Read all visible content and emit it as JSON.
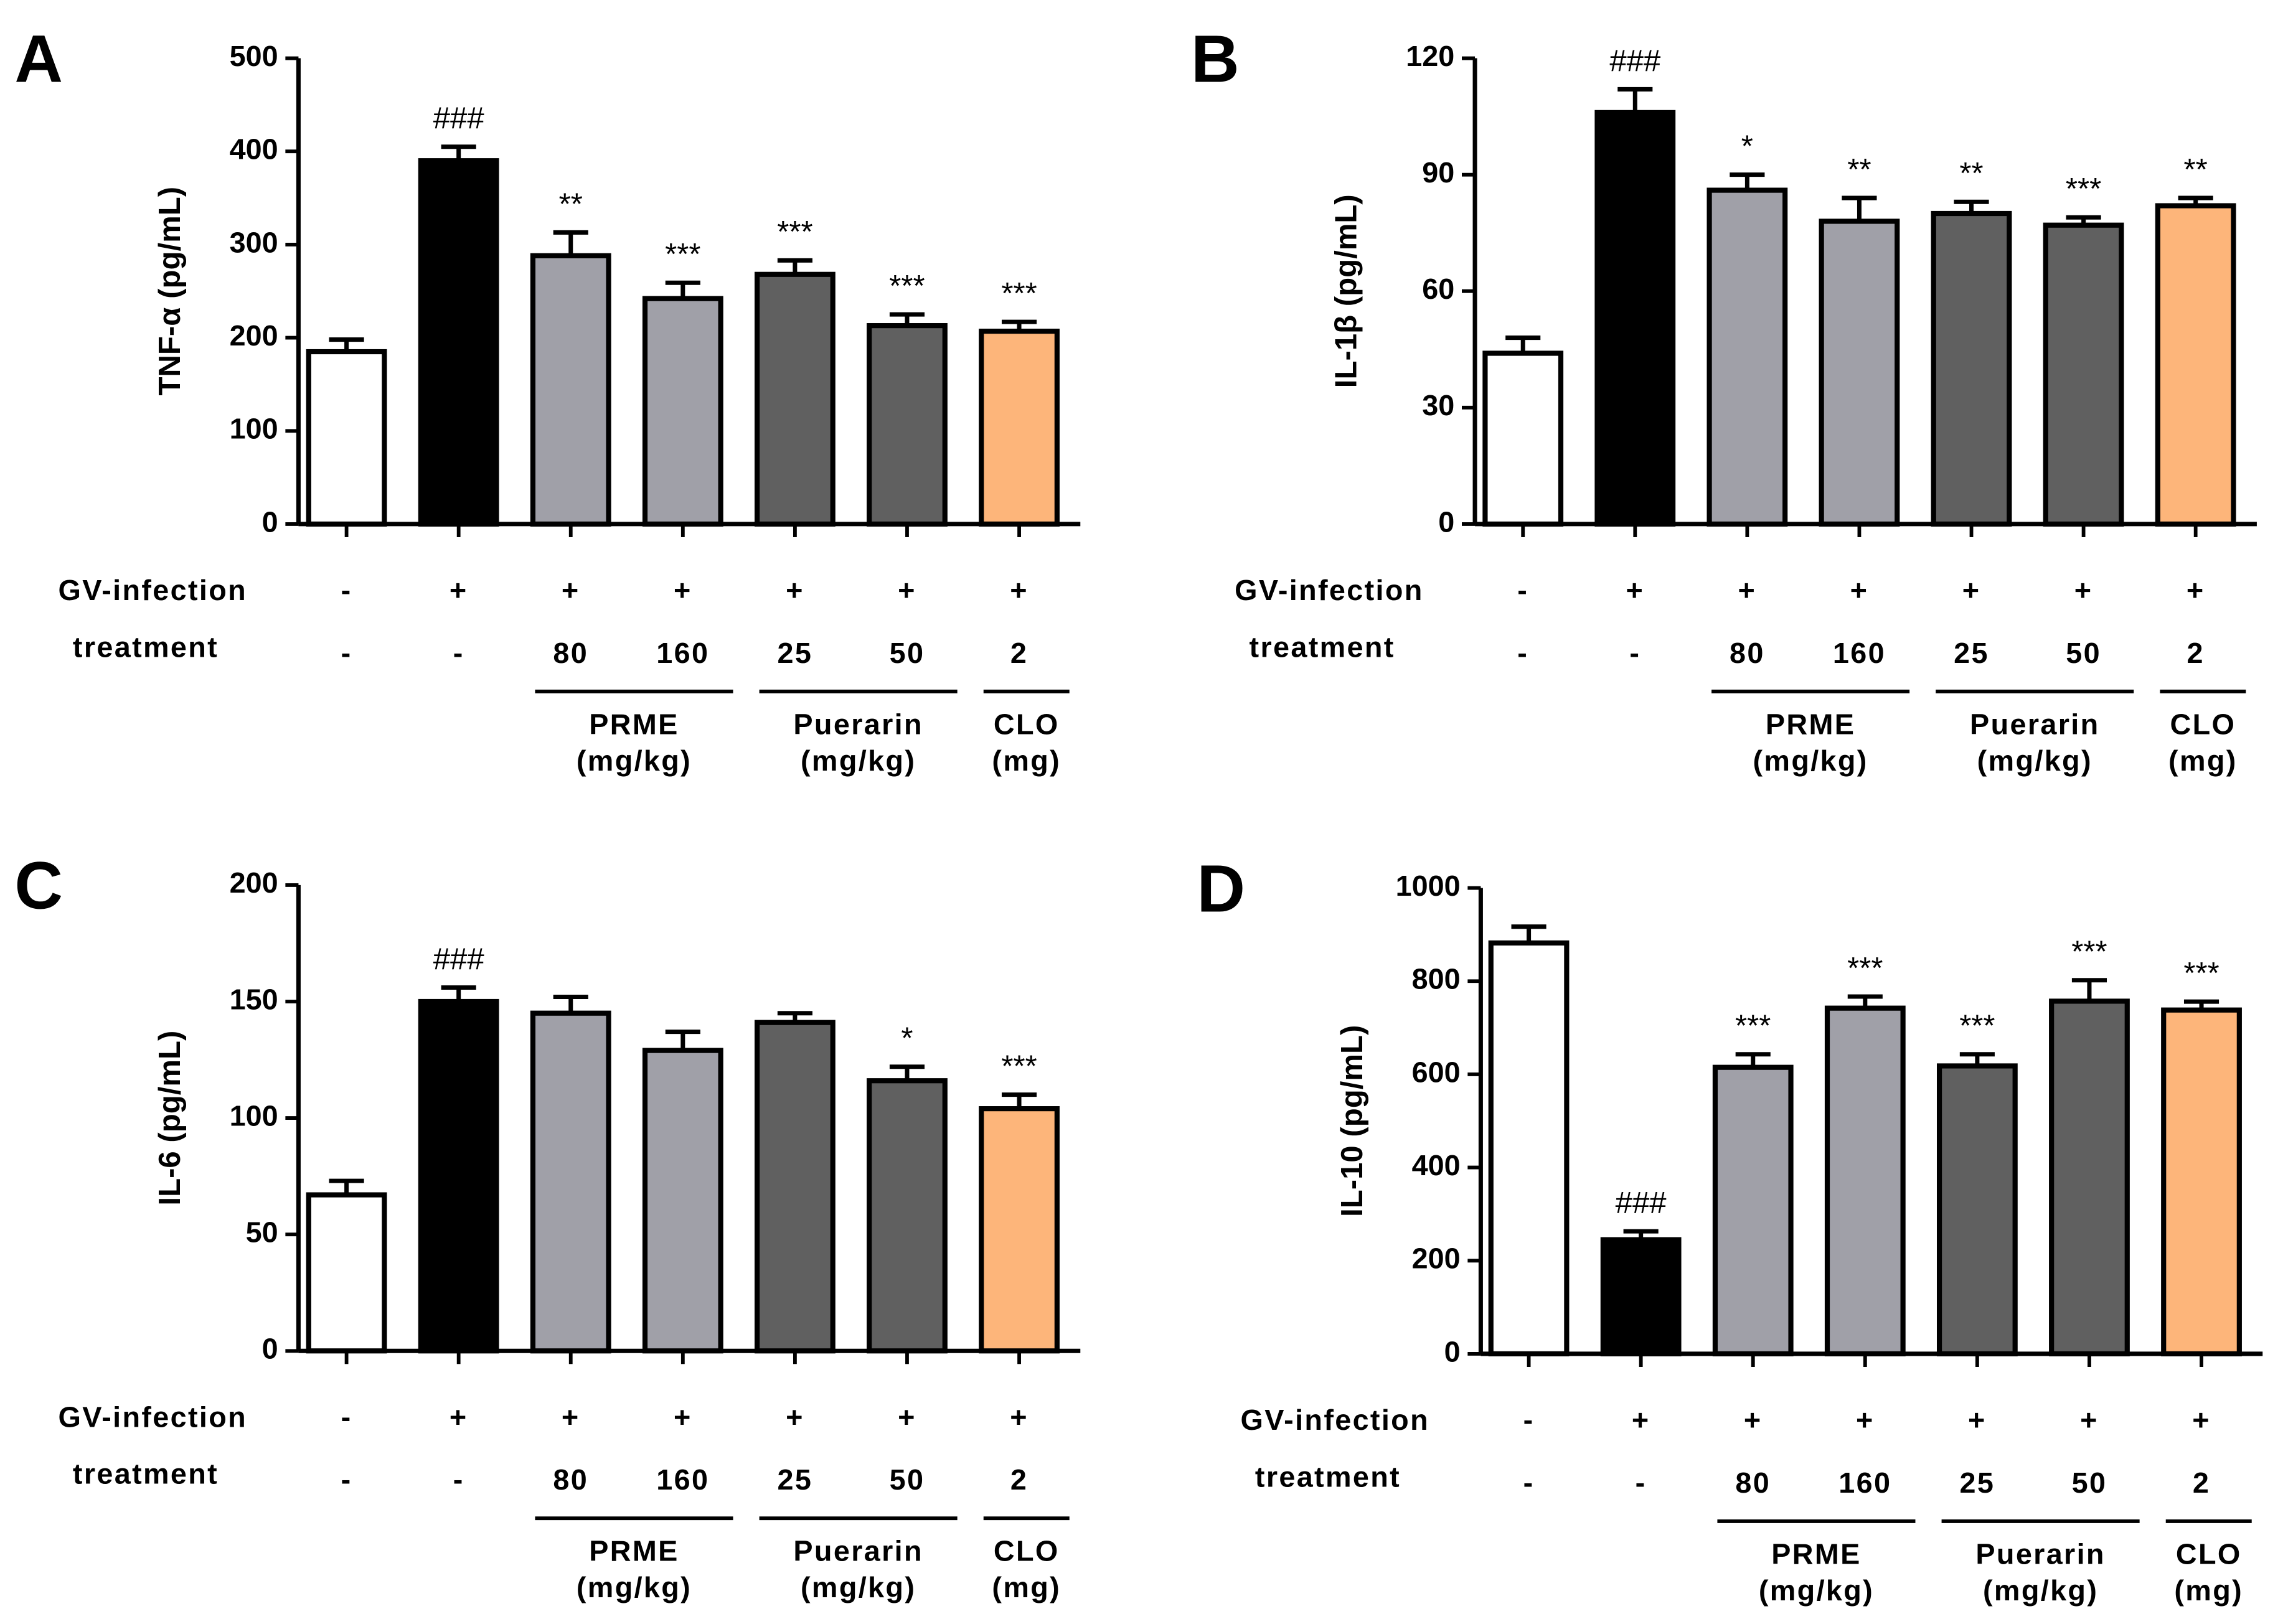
{
  "chart_data": [
    {
      "type": "bar",
      "panel": "A",
      "ylabel": "TNF-α  (pg/mL)",
      "ylim": [
        0,
        500
      ],
      "yticks": [
        0,
        100,
        200,
        300,
        400,
        500
      ],
      "series": [
        {
          "values": [
            185,
            390,
            288,
            242,
            268,
            213,
            207
          ],
          "errors": [
            13,
            15,
            25,
            17,
            15,
            12,
            10
          ],
          "colors": [
            "#ffffff",
            "#000000",
            "#a0a0a8",
            "#a0a0a8",
            "#606060",
            "#606060",
            "#fdb57a"
          ]
        }
      ],
      "annotations": [
        null,
        "###",
        "**",
        "***",
        "***",
        "***",
        "***"
      ],
      "rows": [
        {
          "label": "GV-infection",
          "values": [
            "-",
            "+",
            "+",
            "+",
            "+",
            "+",
            "+"
          ]
        },
        {
          "label": "treatment",
          "values": [
            "-",
            "-",
            "80",
            "160",
            "25",
            "50",
            "2"
          ]
        }
      ],
      "groups": [
        {
          "lines": [
            "PRME",
            "(mg/kg)"
          ],
          "bars": [
            2,
            3
          ]
        },
        {
          "lines": [
            "Puerarin",
            "(mg/kg)"
          ],
          "bars": [
            4,
            5
          ]
        },
        {
          "lines": [
            "CLO",
            "(mg)"
          ],
          "bars": [
            6,
            6
          ]
        }
      ]
    },
    {
      "type": "bar",
      "panel": "B",
      "ylabel": "IL-1β  (pg/mL)",
      "ylim": [
        0,
        120
      ],
      "yticks": [
        0,
        30,
        60,
        90,
        120
      ],
      "series": [
        {
          "values": [
            44,
            106,
            86,
            78,
            80,
            77,
            82
          ],
          "errors": [
            4,
            6,
            4,
            6,
            3,
            2,
            2
          ],
          "colors": [
            "#ffffff",
            "#000000",
            "#a0a0a8",
            "#a0a0a8",
            "#606060",
            "#606060",
            "#fdb57a"
          ]
        }
      ],
      "annotations": [
        null,
        "###",
        "*",
        "**",
        "**",
        "***",
        "**"
      ],
      "rows": [
        {
          "label": "GV-infection",
          "values": [
            "-",
            "+",
            "+",
            "+",
            "+",
            "+",
            "+"
          ]
        },
        {
          "label": "treatment",
          "values": [
            "-",
            "-",
            "80",
            "160",
            "25",
            "50",
            "2"
          ]
        }
      ],
      "groups": [
        {
          "lines": [
            "PRME",
            "(mg/kg)"
          ],
          "bars": [
            2,
            3
          ]
        },
        {
          "lines": [
            "Puerarin",
            "(mg/kg)"
          ],
          "bars": [
            4,
            5
          ]
        },
        {
          "lines": [
            "CLO",
            "(mg)"
          ],
          "bars": [
            6,
            6
          ]
        }
      ]
    },
    {
      "type": "bar",
      "panel": "C",
      "ylabel": "IL-6 (pg/mL)",
      "ylim": [
        0,
        200
      ],
      "yticks": [
        0,
        50,
        100,
        150,
        200
      ],
      "series": [
        {
          "values": [
            67,
            150,
            145,
            129,
            141,
            116,
            104
          ],
          "errors": [
            6,
            6,
            7,
            8,
            4,
            6,
            6
          ],
          "colors": [
            "#ffffff",
            "#000000",
            "#a0a0a8",
            "#a0a0a8",
            "#606060",
            "#606060",
            "#fdb57a"
          ]
        }
      ],
      "annotations": [
        null,
        "###",
        null,
        null,
        null,
        "*",
        "***"
      ],
      "rows": [
        {
          "label": "GV-infection",
          "values": [
            "-",
            "+",
            "+",
            "+",
            "+",
            "+",
            "+"
          ]
        },
        {
          "label": "treatment",
          "values": [
            "-",
            "-",
            "80",
            "160",
            "25",
            "50",
            "2"
          ]
        }
      ],
      "groups": [
        {
          "lines": [
            "PRME",
            "(mg/kg)"
          ],
          "bars": [
            2,
            3
          ]
        },
        {
          "lines": [
            "Puerarin",
            "(mg/kg)"
          ],
          "bars": [
            4,
            5
          ]
        },
        {
          "lines": [
            "CLO",
            "(mg)"
          ],
          "bars": [
            6,
            6
          ]
        }
      ]
    },
    {
      "type": "bar",
      "panel": "D",
      "ylabel": "IL-10 (pg/mL)",
      "ylim": [
        0,
        1000
      ],
      "yticks": [
        0,
        200,
        400,
        600,
        800,
        1000
      ],
      "series": [
        {
          "values": [
            882,
            245,
            615,
            742,
            618,
            757,
            738
          ],
          "errors": [
            35,
            18,
            28,
            25,
            25,
            45,
            18
          ],
          "colors": [
            "#ffffff",
            "#000000",
            "#a0a0a8",
            "#a0a0a8",
            "#606060",
            "#606060",
            "#fdb57a"
          ]
        }
      ],
      "annotations": [
        null,
        "###",
        "***",
        "***",
        "***",
        "***",
        "***"
      ],
      "rows": [
        {
          "label": "GV-infection",
          "values": [
            "-",
            "+",
            "+",
            "+",
            "+",
            "+",
            "+"
          ]
        },
        {
          "label": "treatment",
          "values": [
            "-",
            "-",
            "80",
            "160",
            "25",
            "50",
            "2"
          ]
        }
      ],
      "groups": [
        {
          "lines": [
            "PRME",
            "(mg/kg)"
          ],
          "bars": [
            2,
            3
          ]
        },
        {
          "lines": [
            "Puerarin",
            "(mg/kg)"
          ],
          "bars": [
            4,
            5
          ]
        },
        {
          "lines": [
            "CLO",
            "(mg)"
          ],
          "bars": [
            6,
            6
          ]
        }
      ]
    }
  ]
}
